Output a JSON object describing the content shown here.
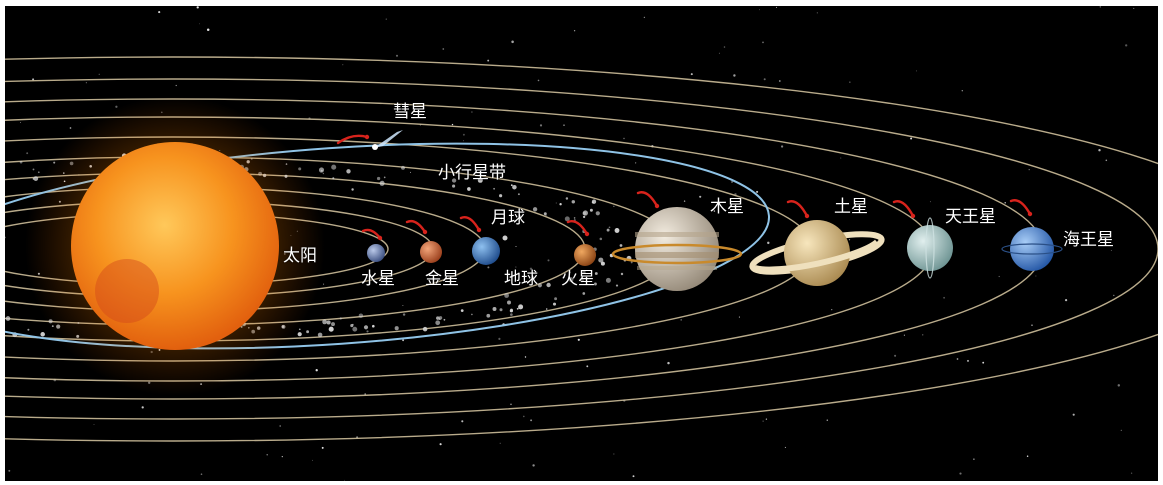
{
  "diagram": {
    "labels": {
      "sun": "太阳",
      "mercury": "水星",
      "venus": "金星",
      "earth": "地球",
      "moon": "月球",
      "mars": "火星",
      "asteroid_belt": "小行星带",
      "jupiter": "木星",
      "saturn": "土星",
      "uranus": "天王星",
      "neptune": "海王星",
      "comet": "彗星"
    },
    "colors": {
      "background": "#000000",
      "orbit": "#d9c9a3",
      "comet_orbit": "#8fc3e6",
      "direction_arrow": "#d8231c",
      "sun": "#f79a1a",
      "mercury": "#6f86b8",
      "venus": "#d8703e",
      "earth": "#3f7fc4",
      "mars": "#c8742c",
      "jupiter": "#d9cdb8",
      "saturn": "#e0c48f",
      "uranus": "#a9c7c6",
      "neptune": "#4d86d6"
    }
  }
}
